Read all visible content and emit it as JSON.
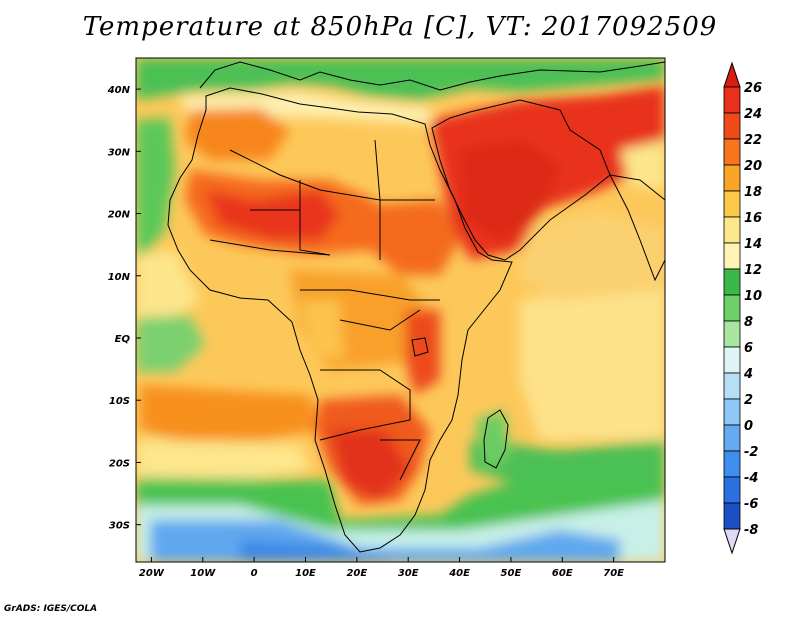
{
  "title": "Temperature at 850hPa [C], VT: 2017092509",
  "credit": "GrADS: IGES/COLA",
  "map": {
    "lon_range": [
      -23,
      80
    ],
    "lat_range": [
      -36,
      45
    ],
    "lon_ticks": [
      {
        "value": -20,
        "label": "20W"
      },
      {
        "value": -10,
        "label": "10W"
      },
      {
        "value": 0,
        "label": "0"
      },
      {
        "value": 10,
        "label": "10E"
      },
      {
        "value": 20,
        "label": "20E"
      },
      {
        "value": 30,
        "label": "30E"
      },
      {
        "value": 40,
        "label": "40E"
      },
      {
        "value": 50,
        "label": "50E"
      },
      {
        "value": 60,
        "label": "60E"
      },
      {
        "value": 70,
        "label": "70E"
      }
    ],
    "lat_ticks": [
      {
        "value": 40,
        "label": "40N"
      },
      {
        "value": 30,
        "label": "30N"
      },
      {
        "value": 20,
        "label": "20N"
      },
      {
        "value": 10,
        "label": "10N"
      },
      {
        "value": 0,
        "label": "EQ"
      },
      {
        "value": -10,
        "label": "10S"
      },
      {
        "value": -20,
        "label": "20S"
      },
      {
        "value": -30,
        "label": "30S"
      }
    ]
  },
  "colorbar": {
    "levels": [
      {
        "label": "26",
        "color": "#e8301c"
      },
      {
        "label": "24",
        "color": "#f04a1a"
      },
      {
        "label": "22",
        "color": "#f7761d"
      },
      {
        "label": "20",
        "color": "#fba42a"
      },
      {
        "label": "18",
        "color": "#fcc84a"
      },
      {
        "label": "16",
        "color": "#fde68c"
      },
      {
        "label": "14",
        "color": "#fdf3b6"
      },
      {
        "label": "12",
        "color": "#3cb84a"
      },
      {
        "label": "10",
        "color": "#6fd06a"
      },
      {
        "label": "8",
        "color": "#a8e6a0"
      },
      {
        "label": "6",
        "color": "#dff5f5"
      },
      {
        "label": "4",
        "color": "#b6dff7"
      },
      {
        "label": "2",
        "color": "#8ec7f5"
      },
      {
        "label": "0",
        "color": "#63aaf0"
      },
      {
        "label": "-2",
        "color": "#3f8ded"
      },
      {
        "label": "-4",
        "color": "#2b6fe0"
      },
      {
        "label": "-6",
        "color": "#1c4fc4"
      },
      {
        "label": "-8",
        "color": "#14249a"
      }
    ],
    "top_arrow_color": "#d81e10",
    "bottom_arrow_color": "#e0d8f4"
  },
  "legend_field": {
    "ocean_south": "#4a9ae8",
    "ocean_mid": "#a8e6a0",
    "warm": "#fba42a",
    "hot": "#e8301c"
  }
}
